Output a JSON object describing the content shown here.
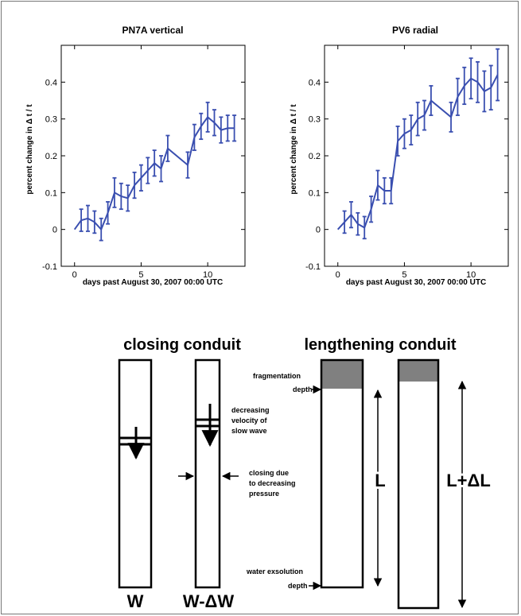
{
  "chart_data": [
    {
      "type": "line",
      "title": "PN7A vertical",
      "xlabel": "days past August 30, 2007 00:00 UTC",
      "ylabel": "percent change in Δ t / t",
      "xlim": [
        -1,
        12.8
      ],
      "ylim": [
        -0.1,
        0.5
      ],
      "xticks": [
        0,
        5,
        10
      ],
      "yticks": [
        -0.1,
        0,
        0.1,
        0.2,
        0.3,
        0.4
      ],
      "color": "#3a4fb0",
      "error_bars": true,
      "points": [
        {
          "x": 0,
          "y": 0.0,
          "err": 0.0
        },
        {
          "x": 0.5,
          "y": 0.025,
          "err": 0.03
        },
        {
          "x": 1.0,
          "y": 0.03,
          "err": 0.035
        },
        {
          "x": 1.5,
          "y": 0.02,
          "err": 0.03
        },
        {
          "x": 2.0,
          "y": 0.0,
          "err": 0.03
        },
        {
          "x": 2.5,
          "y": 0.045,
          "err": 0.03
        },
        {
          "x": 3.0,
          "y": 0.1,
          "err": 0.04
        },
        {
          "x": 3.5,
          "y": 0.09,
          "err": 0.035
        },
        {
          "x": 4.0,
          "y": 0.085,
          "err": 0.035
        },
        {
          "x": 4.5,
          "y": 0.12,
          "err": 0.035
        },
        {
          "x": 5.0,
          "y": 0.14,
          "err": 0.035
        },
        {
          "x": 5.5,
          "y": 0.16,
          "err": 0.035
        },
        {
          "x": 6.0,
          "y": 0.18,
          "err": 0.035
        },
        {
          "x": 6.5,
          "y": 0.165,
          "err": 0.035
        },
        {
          "x": 7.0,
          "y": 0.22,
          "err": 0.035
        },
        {
          "x": 8.5,
          "y": 0.175,
          "err": 0.035
        },
        {
          "x": 9.0,
          "y": 0.25,
          "err": 0.035
        },
        {
          "x": 9.5,
          "y": 0.28,
          "err": 0.035
        },
        {
          "x": 10.0,
          "y": 0.305,
          "err": 0.04
        },
        {
          "x": 10.5,
          "y": 0.29,
          "err": 0.035
        },
        {
          "x": 11.0,
          "y": 0.27,
          "err": 0.035
        },
        {
          "x": 11.5,
          "y": 0.275,
          "err": 0.035
        },
        {
          "x": 12.0,
          "y": 0.275,
          "err": 0.035
        }
      ]
    },
    {
      "type": "line",
      "title": "PV6 radial",
      "xlabel": "days past August 30, 2007 00:00 UTC",
      "ylabel": "percent change in Δ t / t",
      "xlim": [
        -1,
        12.8
      ],
      "ylim": [
        -0.1,
        0.5
      ],
      "xticks": [
        0,
        5,
        10
      ],
      "yticks": [
        -0.1,
        0,
        0.1,
        0.2,
        0.3,
        0.4
      ],
      "color": "#3a4fb0",
      "error_bars": true,
      "points": [
        {
          "x": 0,
          "y": 0.0,
          "err": 0.0
        },
        {
          "x": 0.5,
          "y": 0.02,
          "err": 0.03
        },
        {
          "x": 1.0,
          "y": 0.04,
          "err": 0.035
        },
        {
          "x": 1.5,
          "y": 0.015,
          "err": 0.03
        },
        {
          "x": 2.0,
          "y": 0.005,
          "err": 0.03
        },
        {
          "x": 2.5,
          "y": 0.055,
          "err": 0.035
        },
        {
          "x": 3.0,
          "y": 0.12,
          "err": 0.04
        },
        {
          "x": 3.5,
          "y": 0.105,
          "err": 0.035
        },
        {
          "x": 4.0,
          "y": 0.105,
          "err": 0.035
        },
        {
          "x": 4.5,
          "y": 0.24,
          "err": 0.04
        },
        {
          "x": 5.0,
          "y": 0.26,
          "err": 0.04
        },
        {
          "x": 5.5,
          "y": 0.27,
          "err": 0.04
        },
        {
          "x": 6.0,
          "y": 0.3,
          "err": 0.045
        },
        {
          "x": 6.5,
          "y": 0.31,
          "err": 0.04
        },
        {
          "x": 7.0,
          "y": 0.35,
          "err": 0.04
        },
        {
          "x": 8.5,
          "y": 0.305,
          "err": 0.04
        },
        {
          "x": 9.0,
          "y": 0.36,
          "err": 0.05
        },
        {
          "x": 9.5,
          "y": 0.39,
          "err": 0.05
        },
        {
          "x": 10.0,
          "y": 0.41,
          "err": 0.055
        },
        {
          "x": 10.5,
          "y": 0.4,
          "err": 0.055
        },
        {
          "x": 11.0,
          "y": 0.375,
          "err": 0.055
        },
        {
          "x": 11.5,
          "y": 0.385,
          "err": 0.06
        },
        {
          "x": 12.0,
          "y": 0.42,
          "err": 0.07
        }
      ]
    }
  ],
  "diagram": {
    "closing_title": "closing conduit",
    "lengthening_title": "lengthening conduit",
    "label_w": "W",
    "label_w_minus": "W-ΔW",
    "note_decreasing": [
      "decreasing",
      "velocity of",
      "slow wave"
    ],
    "note_closing": [
      "closing due",
      "to decreasing",
      "pressure"
    ],
    "note_fragmentation": [
      "fragmentation",
      "depth"
    ],
    "note_water": [
      "water exsolution",
      "depth"
    ],
    "label_l": "L",
    "label_l_plus": "L+ΔL",
    "fragment_color": "#808080"
  }
}
